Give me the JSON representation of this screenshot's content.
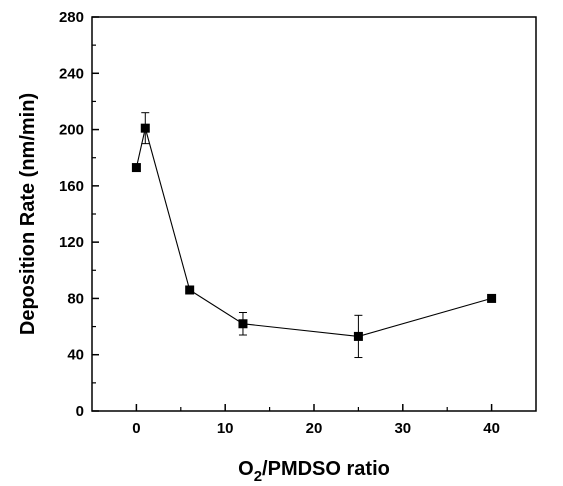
{
  "chart_data": {
    "type": "line",
    "title": "",
    "xlabel_main": "O",
    "xlabel_sub": "2",
    "xlabel_rest": "/PMDSO ratio",
    "ylabel": "Deposition Rate (nm/min)",
    "xlim": [
      -5,
      45
    ],
    "ylim": [
      0,
      280
    ],
    "x_ticks": [
      0,
      10,
      20,
      30,
      40
    ],
    "y_ticks": [
      0,
      40,
      80,
      120,
      160,
      200,
      240,
      280
    ],
    "marker": "square",
    "line_color": "#000000",
    "series": [
      {
        "points": [
          {
            "x": 0,
            "y": 173
          },
          {
            "x": 1,
            "y": 201,
            "err": 11
          },
          {
            "x": 6,
            "y": 86
          },
          {
            "x": 12,
            "y": 62,
            "err": 8
          },
          {
            "x": 25,
            "y": 53,
            "err": 15
          },
          {
            "x": 40,
            "y": 80
          }
        ]
      }
    ]
  }
}
